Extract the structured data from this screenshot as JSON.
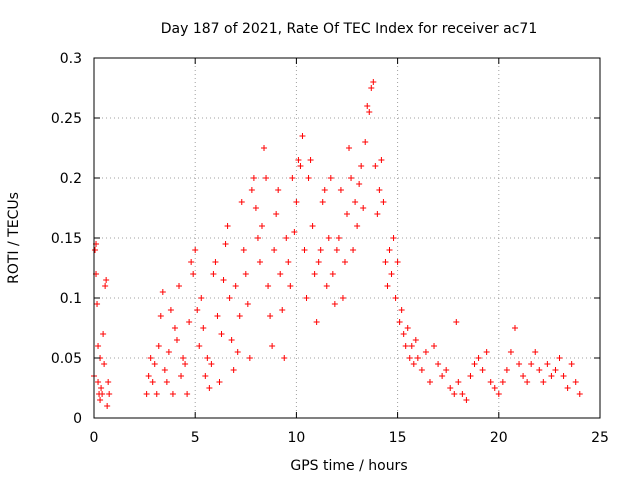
{
  "chart_data": {
    "type": "scatter",
    "title": "Day 187 of 2021, Rate Of TEC Index for receiver ac71",
    "xlabel": "GPS time / hours",
    "ylabel": "ROTI / TECUs",
    "xlim": [
      0,
      25
    ],
    "ylim": [
      0,
      0.3
    ],
    "x_ticks": [
      0,
      5,
      10,
      15,
      20,
      25
    ],
    "x_tick_labels": [
      "0",
      "5",
      "10",
      "15",
      "20",
      "25"
    ],
    "y_ticks": [
      0,
      0.05,
      0.1,
      0.15,
      0.2,
      0.25,
      0.3
    ],
    "y_tick_labels": [
      "0",
      "0.05",
      "0.1",
      "0.15",
      "0.2",
      "0.25",
      "0.3"
    ],
    "grid": true,
    "marker": "plus",
    "color": "#ff0000",
    "series": [
      {
        "points": [
          [
            0.0,
            0.035
          ],
          [
            0.05,
            0.14
          ],
          [
            0.1,
            0.145
          ],
          [
            0.1,
            0.12
          ],
          [
            0.15,
            0.095
          ],
          [
            0.2,
            0.06
          ],
          [
            0.2,
            0.03
          ],
          [
            0.25,
            0.02
          ],
          [
            0.3,
            0.05
          ],
          [
            0.3,
            0.015
          ],
          [
            0.35,
            0.025
          ],
          [
            0.4,
            0.02
          ],
          [
            0.45,
            0.07
          ],
          [
            0.5,
            0.045
          ],
          [
            0.55,
            0.11
          ],
          [
            0.6,
            0.115
          ],
          [
            0.65,
            0.01
          ],
          [
            0.7,
            0.03
          ],
          [
            0.75,
            0.02
          ],
          [
            2.6,
            0.02
          ],
          [
            2.7,
            0.035
          ],
          [
            2.8,
            0.05
          ],
          [
            2.9,
            0.03
          ],
          [
            3.0,
            0.045
          ],
          [
            3.1,
            0.02
          ],
          [
            3.2,
            0.06
          ],
          [
            3.3,
            0.085
          ],
          [
            3.4,
            0.105
          ],
          [
            3.5,
            0.04
          ],
          [
            3.6,
            0.03
          ],
          [
            3.7,
            0.055
          ],
          [
            3.8,
            0.09
          ],
          [
            3.9,
            0.02
          ],
          [
            4.0,
            0.075
          ],
          [
            4.1,
            0.065
          ],
          [
            4.2,
            0.11
          ],
          [
            4.3,
            0.035
          ],
          [
            4.4,
            0.05
          ],
          [
            4.5,
            0.045
          ],
          [
            4.6,
            0.02
          ],
          [
            4.7,
            0.08
          ],
          [
            4.8,
            0.13
          ],
          [
            4.9,
            0.12
          ],
          [
            5.0,
            0.14
          ],
          [
            5.1,
            0.09
          ],
          [
            5.2,
            0.06
          ],
          [
            5.3,
            0.1
          ],
          [
            5.4,
            0.075
          ],
          [
            5.5,
            0.035
          ],
          [
            5.6,
            0.05
          ],
          [
            5.7,
            0.025
          ],
          [
            5.8,
            0.045
          ],
          [
            5.9,
            0.12
          ],
          [
            6.0,
            0.13
          ],
          [
            6.1,
            0.085
          ],
          [
            6.2,
            0.03
          ],
          [
            6.3,
            0.07
          ],
          [
            6.4,
            0.115
          ],
          [
            6.5,
            0.145
          ],
          [
            6.6,
            0.16
          ],
          [
            6.7,
            0.1
          ],
          [
            6.8,
            0.065
          ],
          [
            6.9,
            0.04
          ],
          [
            7.0,
            0.11
          ],
          [
            7.1,
            0.055
          ],
          [
            7.2,
            0.085
          ],
          [
            7.3,
            0.18
          ],
          [
            7.4,
            0.14
          ],
          [
            7.5,
            0.12
          ],
          [
            7.6,
            0.095
          ],
          [
            7.7,
            0.05
          ],
          [
            7.8,
            0.19
          ],
          [
            7.9,
            0.2
          ],
          [
            8.0,
            0.175
          ],
          [
            8.1,
            0.15
          ],
          [
            8.2,
            0.13
          ],
          [
            8.3,
            0.16
          ],
          [
            8.4,
            0.225
          ],
          [
            8.5,
            0.2
          ],
          [
            8.6,
            0.11
          ],
          [
            8.7,
            0.085
          ],
          [
            8.8,
            0.06
          ],
          [
            8.9,
            0.14
          ],
          [
            9.0,
            0.17
          ],
          [
            9.1,
            0.19
          ],
          [
            9.2,
            0.12
          ],
          [
            9.3,
            0.09
          ],
          [
            9.4,
            0.05
          ],
          [
            9.5,
            0.15
          ],
          [
            9.6,
            0.13
          ],
          [
            9.7,
            0.11
          ],
          [
            9.8,
            0.2
          ],
          [
            9.9,
            0.155
          ],
          [
            10.0,
            0.18
          ],
          [
            10.1,
            0.215
          ],
          [
            10.2,
            0.21
          ],
          [
            10.3,
            0.235
          ],
          [
            10.4,
            0.14
          ],
          [
            10.5,
            0.1
          ],
          [
            10.6,
            0.2
          ],
          [
            10.7,
            0.215
          ],
          [
            10.8,
            0.16
          ],
          [
            10.9,
            0.12
          ],
          [
            11.0,
            0.08
          ],
          [
            11.1,
            0.13
          ],
          [
            11.2,
            0.14
          ],
          [
            11.3,
            0.18
          ],
          [
            11.4,
            0.19
          ],
          [
            11.5,
            0.11
          ],
          [
            11.6,
            0.15
          ],
          [
            11.7,
            0.2
          ],
          [
            11.8,
            0.12
          ],
          [
            11.9,
            0.095
          ],
          [
            12.0,
            0.14
          ],
          [
            12.1,
            0.15
          ],
          [
            12.2,
            0.19
          ],
          [
            12.3,
            0.1
          ],
          [
            12.4,
            0.13
          ],
          [
            12.5,
            0.17
          ],
          [
            12.6,
            0.225
          ],
          [
            12.7,
            0.2
          ],
          [
            12.8,
            0.14
          ],
          [
            12.9,
            0.18
          ],
          [
            13.0,
            0.16
          ],
          [
            13.1,
            0.195
          ],
          [
            13.2,
            0.21
          ],
          [
            13.3,
            0.175
          ],
          [
            13.4,
            0.23
          ],
          [
            13.5,
            0.26
          ],
          [
            13.6,
            0.255
          ],
          [
            13.7,
            0.275
          ],
          [
            13.8,
            0.28
          ],
          [
            13.9,
            0.21
          ],
          [
            14.0,
            0.17
          ],
          [
            14.1,
            0.19
          ],
          [
            14.2,
            0.215
          ],
          [
            14.3,
            0.18
          ],
          [
            14.4,
            0.13
          ],
          [
            14.5,
            0.11
          ],
          [
            14.6,
            0.14
          ],
          [
            14.7,
            0.12
          ],
          [
            14.8,
            0.15
          ],
          [
            14.9,
            0.1
          ],
          [
            15.0,
            0.13
          ],
          [
            15.1,
            0.08
          ],
          [
            15.2,
            0.09
          ],
          [
            15.3,
            0.07
          ],
          [
            15.4,
            0.06
          ],
          [
            15.5,
            0.075
          ],
          [
            15.6,
            0.05
          ],
          [
            15.7,
            0.06
          ],
          [
            15.8,
            0.045
          ],
          [
            15.9,
            0.065
          ],
          [
            16.0,
            0.05
          ],
          [
            16.2,
            0.04
          ],
          [
            16.4,
            0.055
          ],
          [
            16.6,
            0.03
          ],
          [
            16.8,
            0.06
          ],
          [
            17.0,
            0.045
          ],
          [
            17.2,
            0.035
          ],
          [
            17.4,
            0.04
          ],
          [
            17.6,
            0.025
          ],
          [
            17.8,
            0.02
          ],
          [
            17.9,
            0.08
          ],
          [
            18.0,
            0.03
          ],
          [
            18.2,
            0.02
          ],
          [
            18.4,
            0.015
          ],
          [
            18.6,
            0.035
          ],
          [
            18.8,
            0.045
          ],
          [
            19.0,
            0.05
          ],
          [
            19.2,
            0.04
          ],
          [
            19.4,
            0.055
          ],
          [
            19.6,
            0.03
          ],
          [
            19.8,
            0.025
          ],
          [
            20.0,
            0.02
          ],
          [
            20.2,
            0.03
          ],
          [
            20.4,
            0.04
          ],
          [
            20.6,
            0.055
          ],
          [
            20.8,
            0.075
          ],
          [
            21.0,
            0.045
          ],
          [
            21.2,
            0.035
          ],
          [
            21.4,
            0.03
          ],
          [
            21.6,
            0.045
          ],
          [
            21.8,
            0.055
          ],
          [
            22.0,
            0.04
          ],
          [
            22.2,
            0.03
          ],
          [
            22.4,
            0.045
          ],
          [
            22.6,
            0.035
          ],
          [
            22.8,
            0.04
          ],
          [
            23.0,
            0.05
          ],
          [
            23.2,
            0.035
          ],
          [
            23.4,
            0.025
          ],
          [
            23.6,
            0.045
          ],
          [
            23.8,
            0.03
          ],
          [
            24.0,
            0.02
          ]
        ]
      }
    ]
  }
}
